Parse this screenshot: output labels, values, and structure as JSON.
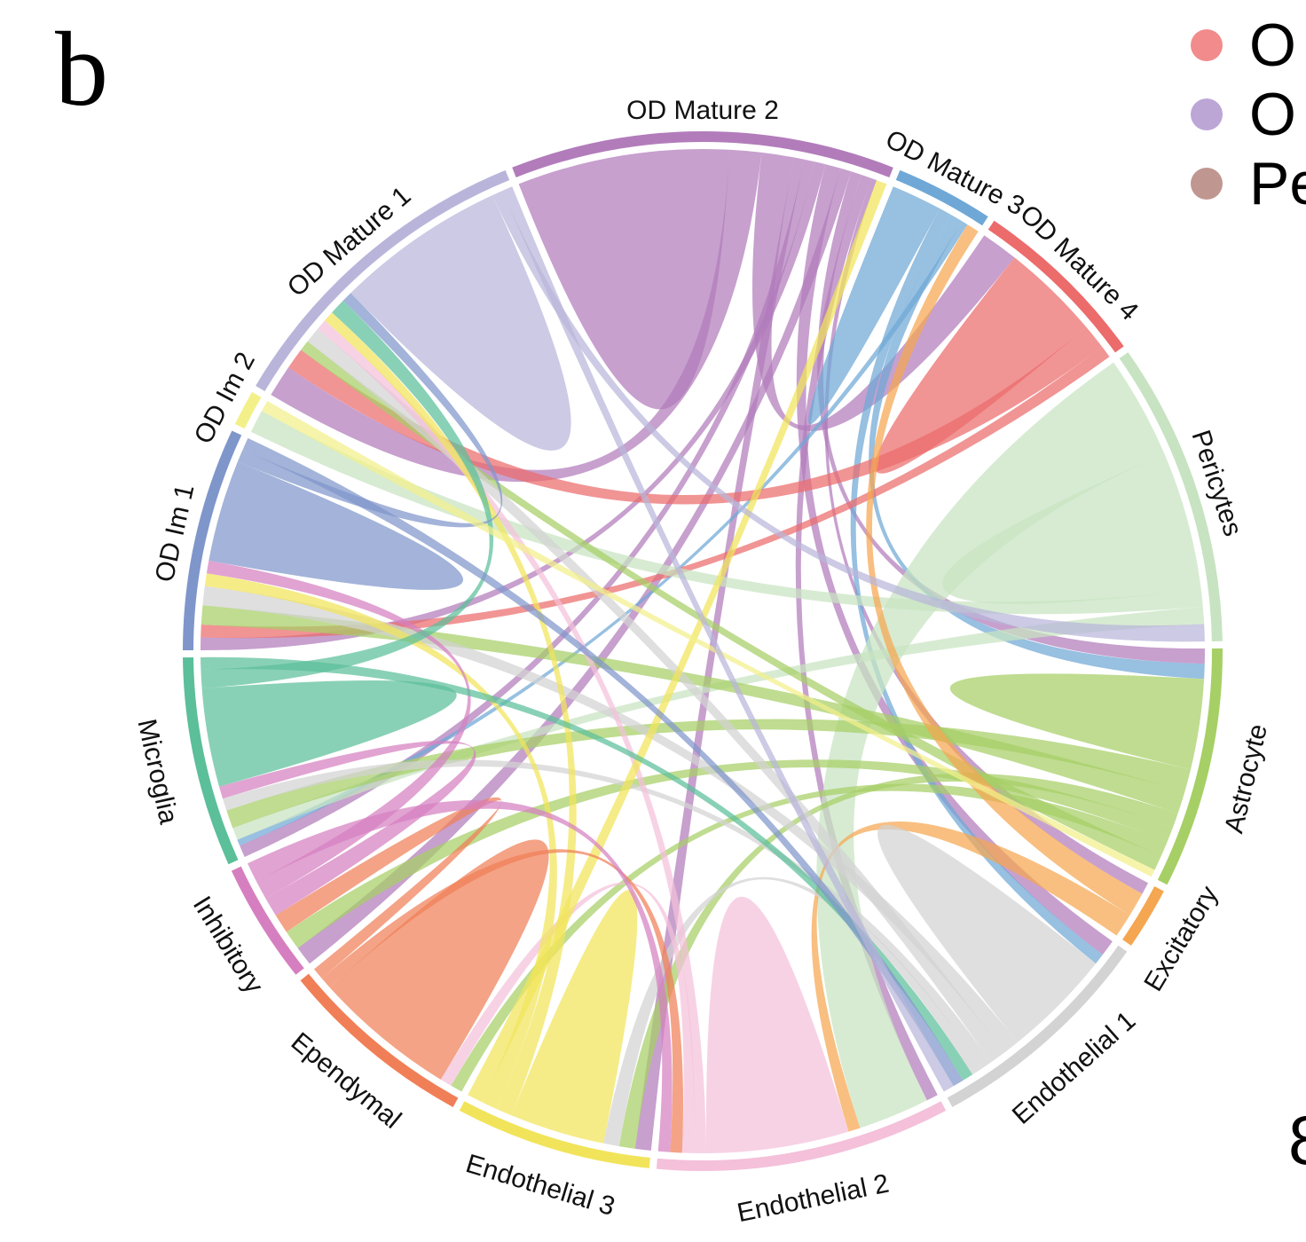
{
  "panel_label": "b",
  "legend": [
    {
      "label": "O",
      "color": "#f28b8b"
    },
    {
      "label": "O",
      "color": "#bca6d6"
    },
    {
      "label": "Pe",
      "color": "#bf9790"
    }
  ],
  "clipped_text": "8",
  "chord": {
    "segments": [
      {
        "name": "OD Mature 2",
        "color": "#b27cbb",
        "value": 43
      },
      {
        "name": "OD Mature 3",
        "color": "#6fa8d6",
        "value": 11
      },
      {
        "name": "OD Mature 4",
        "color": "#ec6b6b",
        "value": 20
      },
      {
        "name": "Pericytes",
        "color": "#c7e3c1",
        "value": 34
      },
      {
        "name": "Astrocyte",
        "color": "#a6cf65",
        "value": 27
      },
      {
        "name": "Excitatory",
        "color": "#f5a650",
        "value": 7
      },
      {
        "name": "Endothelial 1",
        "color": "#d3d3d3",
        "value": 26
      },
      {
        "name": "Endothelial 2",
        "color": "#f4c0da",
        "value": 33
      },
      {
        "name": "Endothelial 3",
        "color": "#f1e45a",
        "value": 22
      },
      {
        "name": "Ependymal",
        "color": "#f07f57",
        "value": 22
      },
      {
        "name": "Inhibitory",
        "color": "#d67fc0",
        "value": 13.5
      },
      {
        "name": "Microglia",
        "color": "#5bbf9a",
        "value": 23.5
      },
      {
        "name": "OD Im 1",
        "color": "#7f96cb",
        "value": 25
      },
      {
        "name": "OD Im 2",
        "color": "#f3f08a",
        "value": 4
      },
      {
        "name": "OD Mature 1",
        "color": "#b9b5da",
        "value": 37
      }
    ],
    "links": [
      [
        "OD Mature 2",
        "OD Mature 2",
        10
      ],
      [
        "OD Mature 2",
        "OD Mature 1",
        3
      ],
      [
        "OD Mature 2",
        "OD Mature 4",
        3
      ],
      [
        "OD Mature 2",
        "Endothelial 3",
        1
      ],
      [
        "OD Mature 2",
        "Microglia",
        1
      ],
      [
        "OD Mature 2",
        "OD Im 1",
        1
      ],
      [
        "OD Mature 2",
        "Endothelial 1",
        1.5
      ],
      [
        "OD Mature 2",
        "Inhibitory",
        1
      ],
      [
        "OD Mature 2",
        "Astrocyte",
        1
      ],
      [
        "OD Mature 2",
        "Endothelial 2",
        1
      ],
      [
        "OD Mature 2",
        "Excitatory",
        0.5
      ],
      [
        "OD Mature 3",
        "OD Mature 3",
        2
      ],
      [
        "OD Mature 3",
        "Endothelial 1",
        1
      ],
      [
        "OD Mature 3",
        "Astrocyte",
        1
      ],
      [
        "OD Mature 3",
        "Microglia",
        0.5
      ],
      [
        "OD Mature 4",
        "OD Mature 4",
        4
      ],
      [
        "OD Mature 4",
        "OD Mature 1",
        2
      ],
      [
        "OD Mature 4",
        "OD Im 1",
        1
      ],
      [
        "Pericytes",
        "Endothelial 2",
        6
      ],
      [
        "Pericytes",
        "Pericytes",
        4
      ],
      [
        "Pericytes",
        "OD Im 2",
        1
      ],
      [
        "Pericytes",
        "Microglia",
        1
      ],
      [
        "Astrocyte",
        "Astrocyte",
        3
      ],
      [
        "Astrocyte",
        "Microglia",
        1.5
      ],
      [
        "Astrocyte",
        "OD Im 1",
        1.5
      ],
      [
        "Astrocyte",
        "Endothelial 3",
        1
      ],
      [
        "Astrocyte",
        "Inhibitory",
        1
      ],
      [
        "Astrocyte",
        "Ependymal",
        1
      ],
      [
        "Astrocyte",
        "OD Mature 1",
        1
      ],
      [
        "Excitatory",
        "OD Mature 3",
        1
      ],
      [
        "Excitatory",
        "Endothelial 2",
        1
      ],
      [
        "Endothelial 1",
        "Endothelial 1",
        5
      ],
      [
        "Endothelial 1",
        "OD Im 1",
        1.5
      ],
      [
        "Endothelial 1",
        "OD Mature 1",
        1.5
      ],
      [
        "Endothelial 1",
        "Microglia",
        1
      ],
      [
        "Endothelial 1",
        "Endothelial 3",
        1
      ],
      [
        "Endothelial 2",
        "Endothelial 2",
        6
      ],
      [
        "Endothelial 2",
        "OD Mature 1",
        1
      ],
      [
        "Endothelial 2",
        "Ependymal",
        1
      ],
      [
        "Endothelial 3",
        "Endothelial 3",
        3
      ],
      [
        "Endothelial 3",
        "OD Mature 1",
        1
      ],
      [
        "Endothelial 3",
        "OD Im 1",
        1
      ],
      [
        "Endothelial 3",
        "OD Mature 2",
        1
      ],
      [
        "Ependymal",
        "Ependymal",
        6
      ],
      [
        "Ependymal",
        "Endothelial 2",
        1
      ],
      [
        "Ependymal",
        "Inhibitory",
        1
      ],
      [
        "Inhibitory",
        "Microglia",
        1
      ],
      [
        "Inhibitory",
        "OD Im 1",
        1
      ],
      [
        "Inhibitory",
        "Endothelial 2",
        1
      ],
      [
        "Microglia",
        "Microglia",
        4
      ],
      [
        "Microglia",
        "OD Mature 1",
        1.5
      ],
      [
        "Microglia",
        "Endothelial 1",
        1
      ],
      [
        "OD Im 1",
        "OD Im 1",
        4
      ],
      [
        "OD Im 1",
        "OD Mature 1",
        1
      ],
      [
        "OD Im 1",
        "Endothelial 1",
        1
      ],
      [
        "OD Im 2",
        "Astrocyte",
        0.5
      ],
      [
        "OD Mature 1",
        "OD Mature 1",
        8
      ],
      [
        "OD Mature 1",
        "Pericytes",
        1
      ],
      [
        "OD Mature 1",
        "Endothelial 1",
        1
      ]
    ]
  }
}
